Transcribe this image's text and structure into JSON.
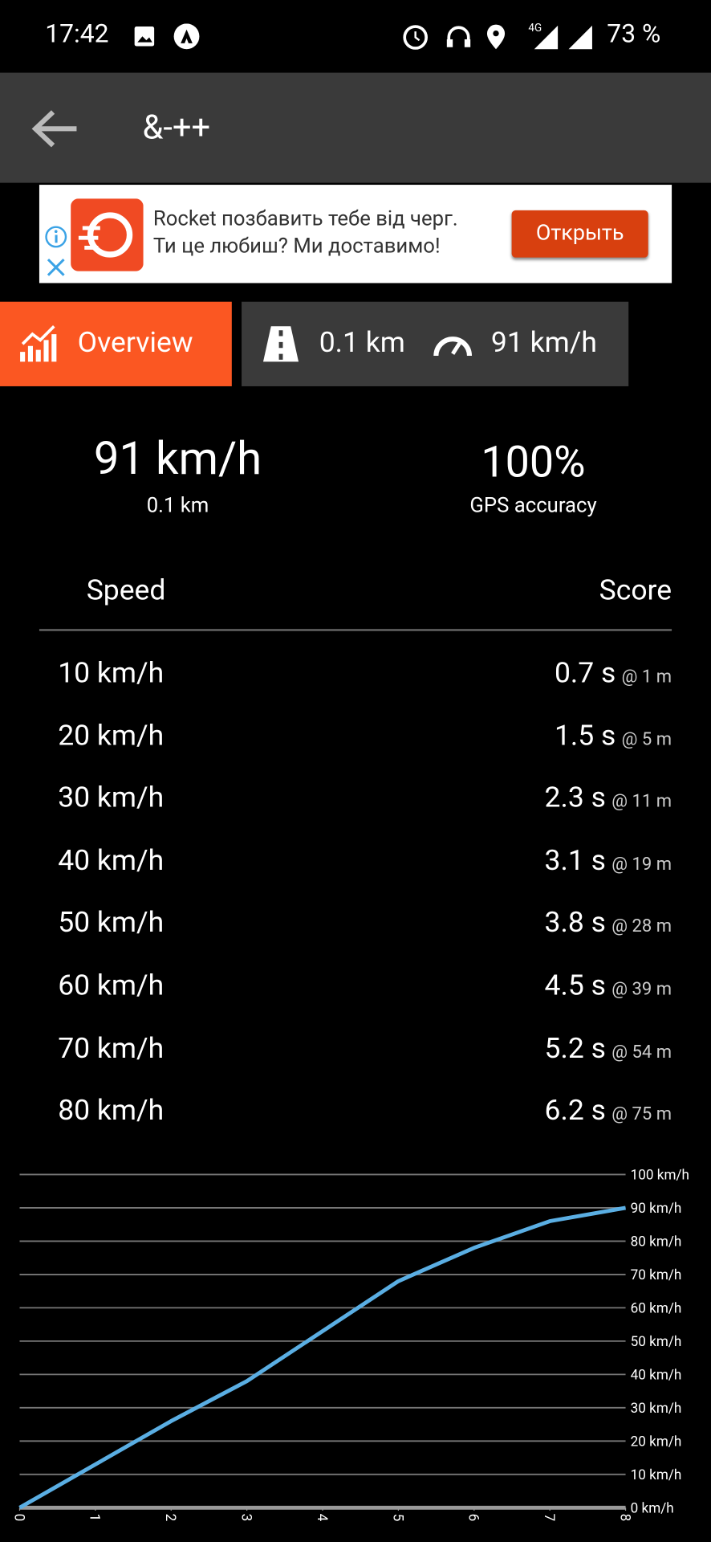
{
  "status_bar": {
    "time": "17:42",
    "network": "4G",
    "battery": "73 %"
  },
  "app_bar": {
    "title": "&-++"
  },
  "ad": {
    "line1": "Rocket позбавить тебе від черг.",
    "line2": "Ти це любиш? Ми доставимо!",
    "button": "Открыть"
  },
  "tabs": {
    "overview": "Overview",
    "distance": "0.1 km",
    "speed": "91 km/h"
  },
  "summary": {
    "speed": "91 km/h",
    "distance": "0.1 km",
    "accuracy": "100%",
    "accuracy_label": "GPS accuracy"
  },
  "table": {
    "headers": [
      "Speed",
      "Score"
    ],
    "rows": [
      [
        "10 km/h",
        "0.7 s",
        "@ 1 m"
      ],
      [
        "20 km/h",
        "1.5 s",
        "@ 5 m"
      ],
      [
        "30 km/h",
        "2.3 s",
        "@ 11 m"
      ],
      [
        "40 km/h",
        "3.1 s",
        "@ 19 m"
      ],
      [
        "50 km/h",
        "3.8 s",
        "@ 28 m"
      ],
      [
        "60 km/h",
        "4.5 s",
        "@ 39 m"
      ],
      [
        "70 km/h",
        "5.2 s",
        "@ 54 m"
      ],
      [
        "80 km/h",
        "6.2 s",
        "@ 75 m"
      ]
    ]
  },
  "chart_data": {
    "type": "line",
    "x": [
      0,
      1,
      2,
      3,
      4,
      5,
      6,
      7,
      8
    ],
    "values": [
      0,
      13,
      26,
      38,
      53,
      68,
      78,
      86,
      90
    ],
    "color": "#5aaee3",
    "xlim": [
      0,
      8
    ],
    "xticks": [
      0,
      1,
      2,
      3,
      4,
      5,
      6,
      7,
      8
    ],
    "ylim": [
      0,
      100
    ],
    "yticks": [
      {
        "value": 0,
        "label": "0 km/h"
      },
      {
        "value": 10,
        "label": "10 km/h"
      },
      {
        "value": 20,
        "label": "20 km/h"
      },
      {
        "value": 30,
        "label": "30 km/h"
      },
      {
        "value": 40,
        "label": "40 km/h"
      },
      {
        "value": 50,
        "label": "50 km/h"
      },
      {
        "value": 60,
        "label": "60 km/h"
      },
      {
        "value": 70,
        "label": "70 km/h"
      },
      {
        "value": 80,
        "label": "80 km/h"
      },
      {
        "value": 90,
        "label": "90 km/h"
      },
      {
        "value": 100,
        "label": "100 km/h"
      }
    ],
    "grid": true,
    "y_axis_side": "right"
  }
}
